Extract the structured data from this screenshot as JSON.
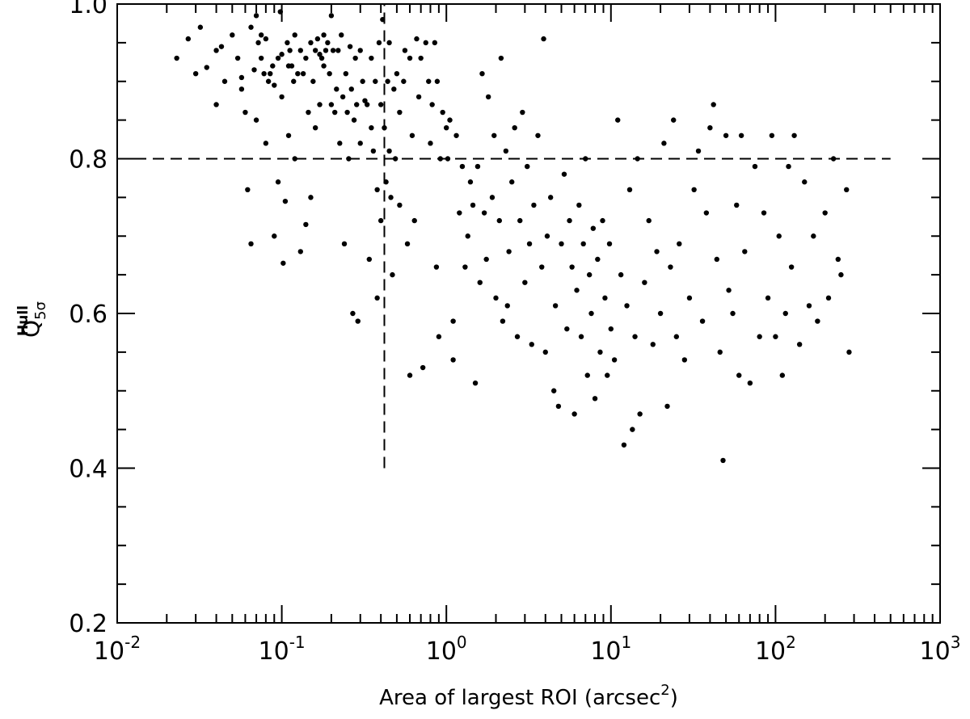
{
  "chart_data": {
    "type": "scatter",
    "title": "",
    "xlabel": "Area of largest ROI (arcsec",
    "xlabel_sup": "2",
    "xlabel_close": ")",
    "ylabel": "Q",
    "ylabel_sub": "5σ",
    "ylabel_sup": "Hull",
    "x_scale": "log",
    "xlim": [
      0.01,
      1000
    ],
    "ylim": [
      0.2,
      1.0
    ],
    "x_ticks": [
      {
        "base": "10",
        "exp": "-2",
        "value": 0.01
      },
      {
        "base": "10",
        "exp": "-1",
        "value": 0.1
      },
      {
        "base": "10",
        "exp": "0",
        "value": 1
      },
      {
        "base": "10",
        "exp": "1",
        "value": 10
      },
      {
        "base": "10",
        "exp": "2",
        "value": 100
      },
      {
        "base": "10",
        "exp": "3",
        "value": 1000
      }
    ],
    "y_ticks": [
      {
        "label": "0.2",
        "value": 0.2
      },
      {
        "label": "0.4",
        "value": 0.4
      },
      {
        "label": "0.6",
        "value": 0.6
      },
      {
        "label": "0.8",
        "value": 0.8
      },
      {
        "label": "1.0",
        "value": 1.0
      }
    ],
    "grid": false,
    "reference_lines": [
      {
        "orientation": "horizontal",
        "y": 0.8,
        "x_from": 0.01,
        "x_to": 500,
        "style": "dashed"
      },
      {
        "orientation": "vertical",
        "x": 0.42,
        "y_from": 0.4,
        "y_to": 1.0,
        "style": "dashed"
      }
    ],
    "series": [
      {
        "marker_color": "#000000",
        "points": [
          [
            0.023,
            0.93
          ],
          [
            0.027,
            0.955
          ],
          [
            0.03,
            0.91
          ],
          [
            0.032,
            0.97
          ],
          [
            0.035,
            0.918
          ],
          [
            0.04,
            0.87
          ],
          [
            0.04,
            0.94
          ],
          [
            0.043,
            0.945
          ],
          [
            0.045,
            0.9
          ],
          [
            0.05,
            0.96
          ],
          [
            0.054,
            0.93
          ],
          [
            0.057,
            0.905
          ],
          [
            0.057,
            0.89
          ],
          [
            0.06,
            0.86
          ],
          [
            0.062,
            0.76
          ],
          [
            0.065,
            0.69
          ],
          [
            0.065,
            0.97
          ],
          [
            0.068,
            0.915
          ],
          [
            0.07,
            0.985
          ],
          [
            0.07,
            0.85
          ],
          [
            0.072,
            0.95
          ],
          [
            0.075,
            0.96
          ],
          [
            0.075,
            0.93
          ],
          [
            0.078,
            0.91
          ],
          [
            0.08,
            0.82
          ],
          [
            0.08,
            0.955
          ],
          [
            0.083,
            0.9
          ],
          [
            0.085,
            0.91
          ],
          [
            0.088,
            0.92
          ],
          [
            0.09,
            0.895
          ],
          [
            0.09,
            0.7
          ],
          [
            0.095,
            0.93
          ],
          [
            0.095,
            0.77
          ],
          [
            0.098,
            0.99
          ],
          [
            0.1,
            0.935
          ],
          [
            0.1,
            0.88
          ],
          [
            0.102,
            0.665
          ],
          [
            0.105,
            0.745
          ],
          [
            0.108,
            0.95
          ],
          [
            0.11,
            0.92
          ],
          [
            0.11,
            0.83
          ],
          [
            0.112,
            0.94
          ],
          [
            0.115,
            0.92
          ],
          [
            0.118,
            0.9
          ],
          [
            0.12,
            0.96
          ],
          [
            0.12,
            0.8
          ],
          [
            0.125,
            0.91
          ],
          [
            0.13,
            0.94
          ],
          [
            0.13,
            0.68
          ],
          [
            0.135,
            0.91
          ],
          [
            0.14,
            0.93
          ],
          [
            0.14,
            0.715
          ],
          [
            0.145,
            0.86
          ],
          [
            0.15,
            0.95
          ],
          [
            0.15,
            0.75
          ],
          [
            0.155,
            0.9
          ],
          [
            0.16,
            0.94
          ],
          [
            0.16,
            0.84
          ],
          [
            0.165,
            0.955
          ],
          [
            0.17,
            0.935
          ],
          [
            0.17,
            0.87
          ],
          [
            0.175,
            0.93
          ],
          [
            0.18,
            0.96
          ],
          [
            0.18,
            0.92
          ],
          [
            0.185,
            0.94
          ],
          [
            0.19,
            0.95
          ],
          [
            0.195,
            0.91
          ],
          [
            0.2,
            0.985
          ],
          [
            0.2,
            0.87
          ],
          [
            0.205,
            0.94
          ],
          [
            0.21,
            0.86
          ],
          [
            0.215,
            0.89
          ],
          [
            0.22,
            0.94
          ],
          [
            0.225,
            0.82
          ],
          [
            0.23,
            0.96
          ],
          [
            0.235,
            0.88
          ],
          [
            0.24,
            0.69
          ],
          [
            0.245,
            0.91
          ],
          [
            0.25,
            0.86
          ],
          [
            0.255,
            0.8
          ],
          [
            0.26,
            0.945
          ],
          [
            0.265,
            0.89
          ],
          [
            0.27,
            0.6
          ],
          [
            0.275,
            0.85
          ],
          [
            0.28,
            0.93
          ],
          [
            0.285,
            0.87
          ],
          [
            0.29,
            0.59
          ],
          [
            0.3,
            0.94
          ],
          [
            0.3,
            0.82
          ],
          [
            0.31,
            0.9
          ],
          [
            0.32,
            0.875
          ],
          [
            0.33,
            0.87
          ],
          [
            0.34,
            0.67
          ],
          [
            0.35,
            0.84
          ],
          [
            0.35,
            0.93
          ],
          [
            0.36,
            0.81
          ],
          [
            0.37,
            0.9
          ],
          [
            0.38,
            0.76
          ],
          [
            0.38,
            0.62
          ],
          [
            0.39,
            0.95
          ],
          [
            0.4,
            0.87
          ],
          [
            0.4,
            0.72
          ],
          [
            0.41,
            0.98
          ],
          [
            0.42,
            0.84
          ],
          [
            0.43,
            0.77
          ],
          [
            0.44,
            0.9
          ],
          [
            0.45,
            0.95
          ],
          [
            0.45,
            0.81
          ],
          [
            0.46,
            0.75
          ],
          [
            0.47,
            0.65
          ],
          [
            0.48,
            0.89
          ],
          [
            0.49,
            0.8
          ],
          [
            0.5,
            0.91
          ],
          [
            0.52,
            0.86
          ],
          [
            0.52,
            0.74
          ],
          [
            0.55,
            0.9
          ],
          [
            0.56,
            0.94
          ],
          [
            0.58,
            0.69
          ],
          [
            0.6,
            0.93
          ],
          [
            0.6,
            0.52
          ],
          [
            0.62,
            0.83
          ],
          [
            0.64,
            0.72
          ],
          [
            0.66,
            0.955
          ],
          [
            0.68,
            0.88
          ],
          [
            0.7,
            0.93
          ],
          [
            0.72,
            0.53
          ],
          [
            0.75,
            0.95
          ],
          [
            0.78,
            0.9
          ],
          [
            0.8,
            0.82
          ],
          [
            0.82,
            0.87
          ],
          [
            0.85,
            0.95
          ],
          [
            0.87,
            0.66
          ],
          [
            0.88,
            0.9
          ],
          [
            0.9,
            0.57
          ],
          [
            0.92,
            0.8
          ],
          [
            0.95,
            0.86
          ],
          [
            1.0,
            0.84
          ],
          [
            1.02,
            0.8
          ],
          [
            1.05,
            0.85
          ],
          [
            1.1,
            0.59
          ],
          [
            1.1,
            0.54
          ],
          [
            1.15,
            0.83
          ],
          [
            1.2,
            0.73
          ],
          [
            1.25,
            0.79
          ],
          [
            1.3,
            0.66
          ],
          [
            1.35,
            0.7
          ],
          [
            1.4,
            0.77
          ],
          [
            1.45,
            0.74
          ],
          [
            1.5,
            0.51
          ],
          [
            1.55,
            0.79
          ],
          [
            1.6,
            0.64
          ],
          [
            1.65,
            0.91
          ],
          [
            1.7,
            0.73
          ],
          [
            1.75,
            0.67
          ],
          [
            1.8,
            0.88
          ],
          [
            1.9,
            0.75
          ],
          [
            1.95,
            0.83
          ],
          [
            2.0,
            0.62
          ],
          [
            2.1,
            0.72
          ],
          [
            2.15,
            0.93
          ],
          [
            2.2,
            0.59
          ],
          [
            2.3,
            0.81
          ],
          [
            2.35,
            0.61
          ],
          [
            2.4,
            0.68
          ],
          [
            2.5,
            0.77
          ],
          [
            2.6,
            0.84
          ],
          [
            2.7,
            0.57
          ],
          [
            2.8,
            0.72
          ],
          [
            2.9,
            0.86
          ],
          [
            3.0,
            0.64
          ],
          [
            3.1,
            0.79
          ],
          [
            3.2,
            0.69
          ],
          [
            3.3,
            0.56
          ],
          [
            3.4,
            0.74
          ],
          [
            3.6,
            0.83
          ],
          [
            3.8,
            0.66
          ],
          [
            3.9,
            0.955
          ],
          [
            4.0,
            0.55
          ],
          [
            4.1,
            0.7
          ],
          [
            4.3,
            0.75
          ],
          [
            4.5,
            0.5
          ],
          [
            4.6,
            0.61
          ],
          [
            4.8,
            0.48
          ],
          [
            5.0,
            0.69
          ],
          [
            5.2,
            0.78
          ],
          [
            5.4,
            0.58
          ],
          [
            5.6,
            0.72
          ],
          [
            5.8,
            0.66
          ],
          [
            6.0,
            0.47
          ],
          [
            6.2,
            0.63
          ],
          [
            6.4,
            0.74
          ],
          [
            6.6,
            0.57
          ],
          [
            6.8,
            0.69
          ],
          [
            7.0,
            0.8
          ],
          [
            7.2,
            0.52
          ],
          [
            7.4,
            0.65
          ],
          [
            7.6,
            0.6
          ],
          [
            7.8,
            0.71
          ],
          [
            8.0,
            0.49
          ],
          [
            8.3,
            0.67
          ],
          [
            8.6,
            0.55
          ],
          [
            8.9,
            0.72
          ],
          [
            9.2,
            0.62
          ],
          [
            9.5,
            0.52
          ],
          [
            9.8,
            0.69
          ],
          [
            10.0,
            0.58
          ],
          [
            10.5,
            0.54
          ],
          [
            11.0,
            0.85
          ],
          [
            11.5,
            0.65
          ],
          [
            12.0,
            0.43
          ],
          [
            12.5,
            0.61
          ],
          [
            13.0,
            0.76
          ],
          [
            13.5,
            0.45
          ],
          [
            14.0,
            0.57
          ],
          [
            14.5,
            0.8
          ],
          [
            15.0,
            0.47
          ],
          [
            16.0,
            0.64
          ],
          [
            17.0,
            0.72
          ],
          [
            18.0,
            0.56
          ],
          [
            19.0,
            0.68
          ],
          [
            20.0,
            0.6
          ],
          [
            21.0,
            0.82
          ],
          [
            22.0,
            0.48
          ],
          [
            23.0,
            0.66
          ],
          [
            24.0,
            0.85
          ],
          [
            25.0,
            0.57
          ],
          [
            26.0,
            0.69
          ],
          [
            28.0,
            0.54
          ],
          [
            30.0,
            0.62
          ],
          [
            32.0,
            0.76
          ],
          [
            34.0,
            0.81
          ],
          [
            36.0,
            0.59
          ],
          [
            38.0,
            0.73
          ],
          [
            40.0,
            0.84
          ],
          [
            42.0,
            0.87
          ],
          [
            44.0,
            0.67
          ],
          [
            46.0,
            0.55
          ],
          [
            48.0,
            0.41
          ],
          [
            50.0,
            0.83
          ],
          [
            52.0,
            0.63
          ],
          [
            55.0,
            0.6
          ],
          [
            58.0,
            0.74
          ],
          [
            60.0,
            0.52
          ],
          [
            62.0,
            0.83
          ],
          [
            65.0,
            0.68
          ],
          [
            70.0,
            0.51
          ],
          [
            75.0,
            0.79
          ],
          [
            80.0,
            0.57
          ],
          [
            85.0,
            0.73
          ],
          [
            90.0,
            0.62
          ],
          [
            95.0,
            0.83
          ],
          [
            100.0,
            0.57
          ],
          [
            105.0,
            0.7
          ],
          [
            110.0,
            0.52
          ],
          [
            115.0,
            0.6
          ],
          [
            120.0,
            0.79
          ],
          [
            125.0,
            0.66
          ],
          [
            130.0,
            0.83
          ],
          [
            140.0,
            0.56
          ],
          [
            150.0,
            0.77
          ],
          [
            160.0,
            0.61
          ],
          [
            170.0,
            0.7
          ],
          [
            180.0,
            0.59
          ],
          [
            200.0,
            0.73
          ],
          [
            210.0,
            0.62
          ],
          [
            225.0,
            0.8
          ],
          [
            240.0,
            0.67
          ],
          [
            250.0,
            0.65
          ],
          [
            280.0,
            0.55
          ],
          [
            270.0,
            0.76
          ]
        ]
      }
    ]
  }
}
